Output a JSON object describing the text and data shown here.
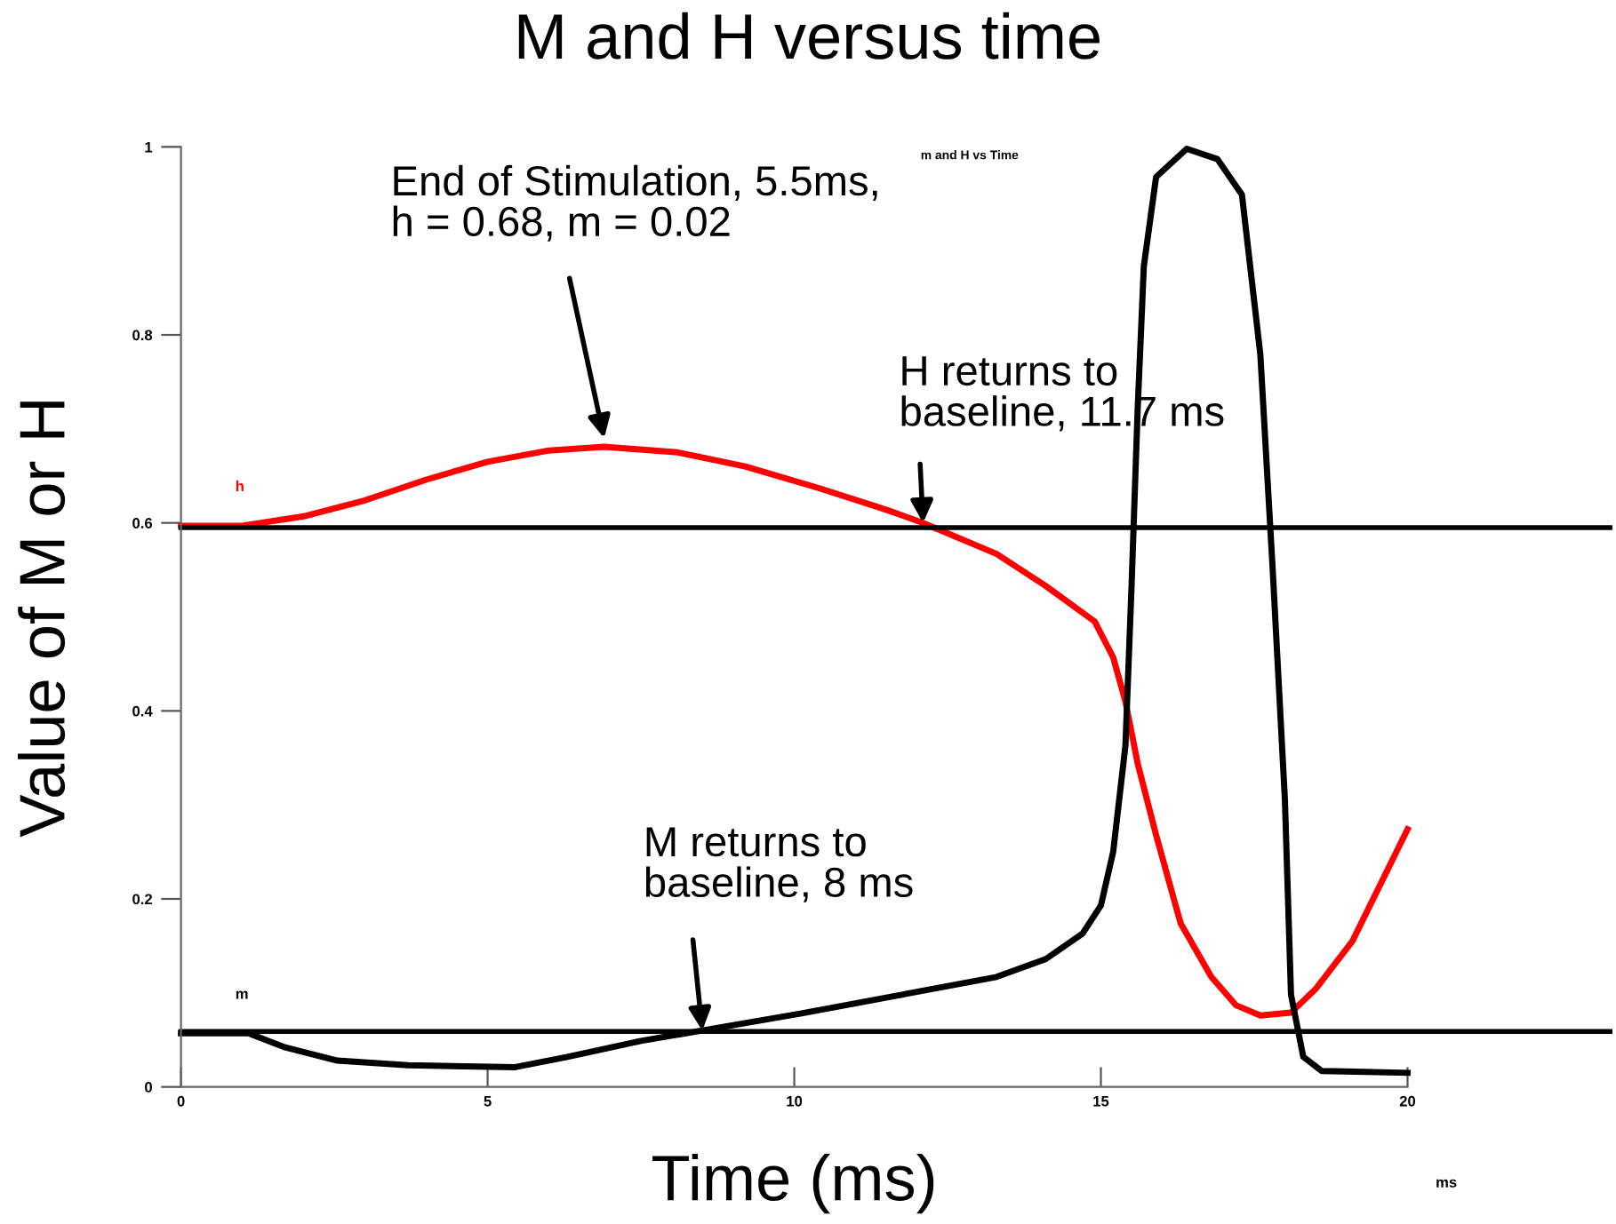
{
  "chart_data": {
    "type": "line",
    "title": "M and H versus time",
    "xlabel": "Time (ms)",
    "ylabel": "Value of M or H",
    "xlim": [
      0,
      20
    ],
    "ylim": [
      0,
      1
    ],
    "xticks": [
      0,
      5,
      10,
      15,
      20
    ],
    "yticks": [
      0,
      0.2,
      0.4,
      0.6,
      0.8,
      1
    ],
    "grid": false,
    "legend": false,
    "marker": "none",
    "line_style": "solid",
    "series": [
      {
        "name": "h",
        "color": "#ff0000",
        "x": [
          0,
          1.0,
          2,
          3,
          4,
          5,
          6,
          6.9,
          8.1,
          9.2,
          10.4,
          11.5,
          12.1,
          13.3,
          14.1,
          14.9,
          15.2,
          15.4,
          15.6,
          15.9,
          16.3,
          16.8,
          17.2,
          17.6,
          18.1,
          18.5,
          19.1,
          20
        ],
        "values": [
          0.597,
          0.597,
          0.607,
          0.624,
          0.646,
          0.665,
          0.677,
          0.681,
          0.675,
          0.66,
          0.637,
          0.614,
          0.6,
          0.567,
          0.533,
          0.495,
          0.457,
          0.41,
          0.344,
          0.268,
          0.174,
          0.117,
          0.087,
          0.076,
          0.079,
          0.104,
          0.155,
          0.274
        ]
      },
      {
        "name": "m",
        "color": "#000000",
        "x": [
          0,
          1.1,
          1.7,
          2.55,
          3.7,
          5.45,
          6.3,
          7.5,
          8.5,
          10.1,
          11.5,
          13.3,
          14.1,
          14.7,
          15.0,
          15.2,
          15.4,
          15.5,
          15.6,
          15.7,
          15.9,
          16.4,
          16.9,
          17.3,
          17.6,
          17.8,
          18.0,
          18.1,
          18.3,
          18.6,
          20
        ],
        "values": [
          0.057,
          0.057,
          0.042,
          0.028,
          0.023,
          0.021,
          0.032,
          0.049,
          0.06,
          0.078,
          0.095,
          0.117,
          0.136,
          0.163,
          0.193,
          0.25,
          0.363,
          0.533,
          0.722,
          0.873,
          0.968,
          0.998,
          0.987,
          0.949,
          0.779,
          0.552,
          0.306,
          0.098,
          0.032,
          0.017,
          0.015
        ]
      }
    ],
    "ref_lines": [
      {
        "axis": "y",
        "value": 0.595,
        "color": "#000000"
      },
      {
        "axis": "y",
        "value": 0.059,
        "color": "#000000"
      }
    ],
    "annotations": [
      {
        "text": "End of Stimulation, 5.5ms,\nh = 0.68, m = 0.02",
        "x": 6.9,
        "y": 0.69
      },
      {
        "text": "H returns to\nbaseline, 11.7 ms",
        "x": 12.1,
        "y": 0.6
      },
      {
        "text": "M returns to\nbaseline, 8 ms",
        "x": 8.5,
        "y": 0.06
      },
      "m and H vs Time",
      "ms"
    ]
  }
}
